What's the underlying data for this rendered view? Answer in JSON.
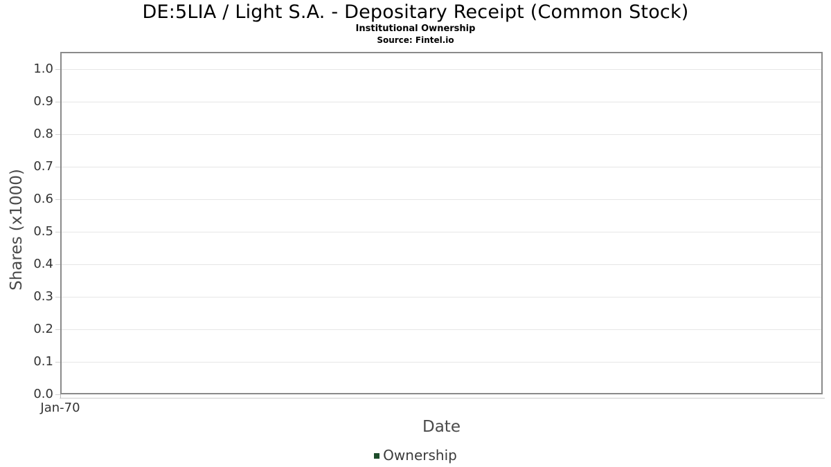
{
  "chart_data": {
    "type": "line",
    "title": "DE:5LIA / Light S.A. - Depositary Receipt (Common Stock)",
    "subtitle": "Institutional Ownership",
    "source": "Source: Fintel.io",
    "xlabel": "Date",
    "ylabel": "Shares (x1000)",
    "x_ticks": [
      "Jan-70"
    ],
    "y_ticks": [
      "0.0",
      "0.1",
      "0.2",
      "0.3",
      "0.4",
      "0.5",
      "0.6",
      "0.7",
      "0.8",
      "0.9",
      "1.0"
    ],
    "ylim": [
      0,
      1.05
    ],
    "grid": true,
    "legend_position": "bottom",
    "series": [
      {
        "name": "Ownership",
        "color": "#1e4d2b",
        "x": [],
        "values": []
      }
    ]
  },
  "colors": {
    "background": "#ffffff",
    "title_text": "#000000",
    "axis_tick_text": "#333333",
    "axis_title_text": "#4a4a4a",
    "legend_text": "#3b3b3b",
    "plot_border": "#8a8a8a",
    "gridline": "#e6e6e6",
    "tick_mark": "#d0d0d0",
    "x_axis_line": "#cccccc",
    "series_ownership": "#1e4d2b"
  }
}
